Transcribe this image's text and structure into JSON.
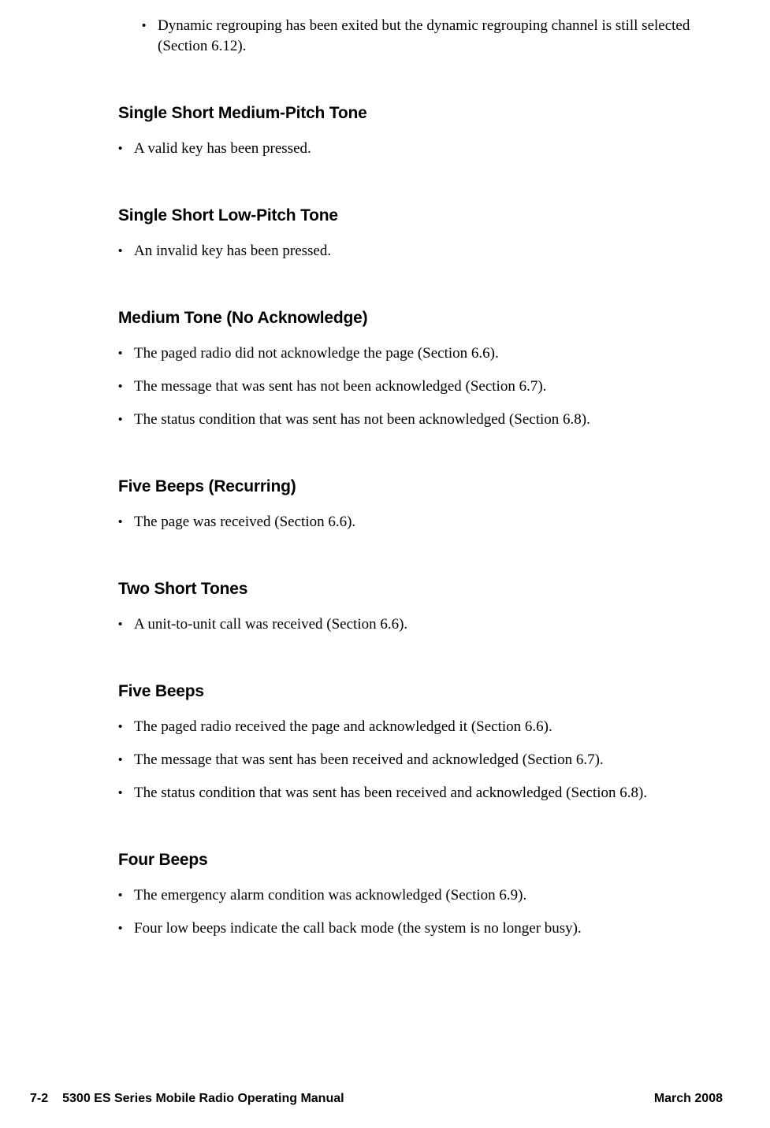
{
  "topBullets": [
    "Dynamic regrouping has been exited but the dynamic regrouping channel is still selected (Section 6.12)."
  ],
  "sections": [
    {
      "title": "Single Short Medium-Pitch Tone",
      "bullets": [
        "A valid key has been pressed."
      ]
    },
    {
      "title": "Single Short Low-Pitch Tone",
      "bullets": [
        "An invalid key has been pressed."
      ]
    },
    {
      "title": "Medium Tone (No Acknowledge)",
      "bullets": [
        "The paged radio did not acknowledge the page (Section 6.6).",
        "The message that was sent has not been acknowledged (Section 6.7).",
        "The status condition that was sent has not been acknowledged (Section 6.8)."
      ]
    },
    {
      "title": "Five Beeps (Recurring)",
      "bullets": [
        "The page was received (Section 6.6)."
      ]
    },
    {
      "title": "Two Short Tones",
      "bullets": [
        "A unit-to-unit call was received (Section 6.6)."
      ]
    },
    {
      "title": "Five Beeps",
      "bullets": [
        "The paged radio received the page and acknowledged it (Section 6.6).",
        "The message that was sent has been received and acknowledged (Section 6.7).",
        "The status condition that was sent has been received and acknowledged (Section 6.8)."
      ]
    },
    {
      "title": "Four Beeps",
      "bullets": [
        "The emergency alarm condition was acknowledged (Section 6.9).",
        "Four low beeps indicate the call back mode (the system is no longer busy)."
      ]
    }
  ],
  "footer": {
    "pageNum": "7-2",
    "manual": "5300 ES Series Mobile Radio Operating Manual",
    "date": "March 2008"
  },
  "style": {
    "bodyFontSize": 19,
    "headingFontSize": 21,
    "footerFontSize": 16,
    "textColor": "#000000",
    "background": "#ffffff",
    "bulletChar": "•"
  }
}
